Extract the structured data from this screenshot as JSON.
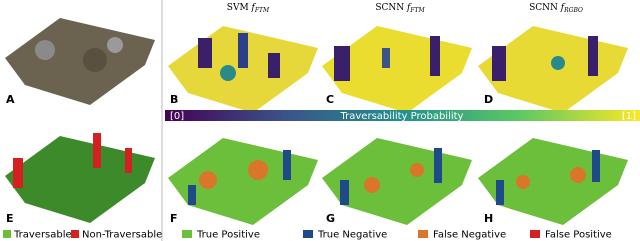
{
  "panels": [
    {
      "letter": "A"
    },
    {
      "letter": "B",
      "title": {
        "method": "SVM",
        "func": "f",
        "sub": "FTM"
      }
    },
    {
      "letter": "C",
      "title": {
        "method": "SCNN",
        "func": "f",
        "sub": "FTM"
      }
    },
    {
      "letter": "D",
      "title": {
        "method": "SCNN",
        "func": "f",
        "sub": "RGBO"
      }
    },
    {
      "letter": "E"
    },
    {
      "letter": "F"
    },
    {
      "letter": "G"
    },
    {
      "letter": "H"
    }
  ],
  "colorbar": {
    "min_label": "[0]",
    "label": "Traversability Probability",
    "max_label": "[1]"
  },
  "legend_left": [
    "Traversable",
    "Non-Traversable"
  ],
  "legend_right": [
    "True Positive",
    "True Negative",
    "False Negative",
    "False Positive"
  ]
}
